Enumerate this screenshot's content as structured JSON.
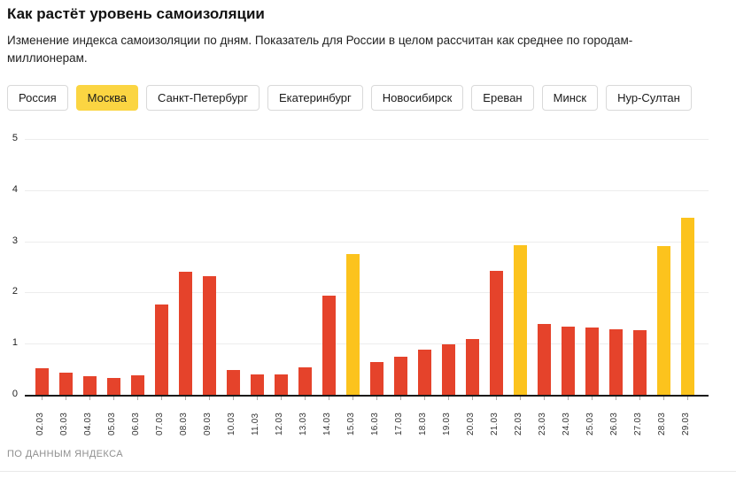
{
  "header": {
    "title": "Как растёт уровень самоизоляции",
    "subtitle": "Изменение индекса самоизоляции по дням. Показатель для России в целом рассчитан как среднее по городам-миллионерам."
  },
  "tabs": {
    "items": [
      {
        "id": "russia",
        "label": "Россия",
        "active": false
      },
      {
        "id": "moscow",
        "label": "Москва",
        "active": true
      },
      {
        "id": "saint-petersburg",
        "label": "Санкт-Петербург",
        "active": false
      },
      {
        "id": "ekaterinburg",
        "label": "Екатеринбург",
        "active": false
      },
      {
        "id": "novosibirsk",
        "label": "Новосибирск",
        "active": false
      },
      {
        "id": "yerevan",
        "label": "Ереван",
        "active": false
      },
      {
        "id": "minsk",
        "label": "Минск",
        "active": false
      },
      {
        "id": "nur-sultan",
        "label": "Нур-Султан",
        "active": false
      }
    ],
    "active_bg": "#fbd542"
  },
  "chart_data": {
    "type": "bar",
    "title": "Как растёт уровень самоизоляции",
    "xlabel": "",
    "ylabel": "",
    "categories": [
      "02.03",
      "03.03",
      "04.03",
      "05.03",
      "06.03",
      "07.03",
      "08.03",
      "09.03",
      "10.03",
      "11.03",
      "12.03",
      "13.03",
      "14.03",
      "15.03",
      "16.03",
      "17.03",
      "18.03",
      "19.03",
      "20.03",
      "21.03",
      "22.03",
      "23.03",
      "24.03",
      "25.03",
      "26.03",
      "27.03",
      "28.03",
      "29.03"
    ],
    "values": [
      0.52,
      0.43,
      0.37,
      0.33,
      0.38,
      1.76,
      2.41,
      2.32,
      0.48,
      0.4,
      0.4,
      0.54,
      1.93,
      2.75,
      0.64,
      0.74,
      0.88,
      0.98,
      1.09,
      2.42,
      2.93,
      1.38,
      1.33,
      1.31,
      1.28,
      1.26,
      2.91,
      3.46
    ],
    "highlighted_categories": [
      "15.03",
      "22.03",
      "28.03",
      "29.03"
    ],
    "ylim": [
      0,
      5
    ],
    "yticks": [
      0,
      1,
      2,
      3,
      4,
      5
    ],
    "grid": true,
    "legend": false,
    "colors": {
      "bar": "#e5432b",
      "bar_highlight": "#fcc31d"
    }
  },
  "footer": {
    "source": "ПО ДАННЫМ ЯНДЕКСА"
  }
}
